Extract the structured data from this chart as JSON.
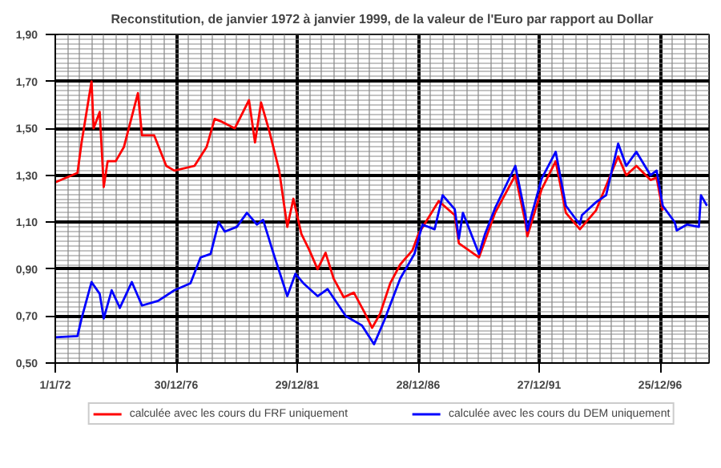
{
  "chart_data": {
    "type": "line",
    "title": "Reconstitution, de janvier 1972 à janvier 1999, de la valeur de l'Euro par rapport au Dollar",
    "xlim": [
      "1972-01-01",
      "1998-12-31"
    ],
    "xticks": [
      {
        "value": "1972-01-01",
        "label": "1/1/72"
      },
      {
        "value": "1976-12-30",
        "label": "30/12/76"
      },
      {
        "value": "1981-12-29",
        "label": "29/12/81"
      },
      {
        "value": "1986-12-28",
        "label": "28/12/86"
      },
      {
        "value": "1991-12-27",
        "label": "27/12/91"
      },
      {
        "value": "1996-12-25",
        "label": "25/12/96"
      }
    ],
    "ylim": [
      0.5,
      1.9
    ],
    "yticks": [
      {
        "value": 0.5,
        "label": "0,50"
      },
      {
        "value": 0.7,
        "label": "0,70"
      },
      {
        "value": 0.9,
        "label": "0,90"
      },
      {
        "value": 1.1,
        "label": "1,10"
      },
      {
        "value": 1.3,
        "label": "1,30"
      },
      {
        "value": 1.5,
        "label": "1,50"
      },
      {
        "value": 1.7,
        "label": "1,70"
      },
      {
        "value": 1.9,
        "label": "1,90"
      }
    ],
    "grid": true,
    "legend": "bottom",
    "line_style": "solid",
    "series": [
      {
        "name": "calculée avec les cours du FRF uniquement",
        "color": "#ff0000",
        "x": [
          "1972-01",
          "1972-12",
          "1973-02",
          "1973-07",
          "1973-08",
          "1973-11",
          "1974-01",
          "1974-03",
          "1974-07",
          "1974-11",
          "1975-06",
          "1975-08",
          "1976-02",
          "1976-08",
          "1976-12",
          "1977-10",
          "1978-04",
          "1978-08",
          "1978-11",
          "1979-06",
          "1980-01",
          "1980-04",
          "1980-07",
          "1980-11",
          "1981-04",
          "1981-07",
          "1981-08",
          "1981-11",
          "1982-03",
          "1982-07",
          "1982-11",
          "1983-03",
          "1983-07",
          "1983-12",
          "1984-05",
          "1984-10",
          "1985-02",
          "1985-06",
          "1985-11",
          "1986-04",
          "1986-10",
          "1987-01",
          "1987-11",
          "1988-07",
          "1988-09",
          "1989-07",
          "1990-03",
          "1991-01",
          "1991-06",
          "1991-07",
          "1992-02",
          "1992-09",
          "1993-02",
          "1993-09",
          "1994-05",
          "1995-04",
          "1995-08",
          "1996-01",
          "1996-08",
          "1996-11",
          "1997-02"
        ],
        "values": [
          1.27,
          1.31,
          1.44,
          1.7,
          1.5,
          1.57,
          1.25,
          1.36,
          1.36,
          1.42,
          1.65,
          1.47,
          1.47,
          1.34,
          1.32,
          1.34,
          1.42,
          1.54,
          1.53,
          1.5,
          1.62,
          1.44,
          1.61,
          1.49,
          1.32,
          1.14,
          1.08,
          1.2,
          1.05,
          0.98,
          0.9,
          0.97,
          0.86,
          0.78,
          0.8,
          0.72,
          0.65,
          0.71,
          0.84,
          0.92,
          0.98,
          1.05,
          1.19,
          1.13,
          1.01,
          0.95,
          1.14,
          1.3,
          1.1,
          1.04,
          1.24,
          1.36,
          1.14,
          1.07,
          1.15,
          1.38,
          1.3,
          1.34,
          1.28,
          1.29,
          1.15
        ]
      },
      {
        "name": "calculée avec les cours du DEM uniquement",
        "color": "#0000ff",
        "x": [
          "1972-01",
          "1972-12",
          "1973-02",
          "1973-07",
          "1973-11",
          "1974-01",
          "1974-05",
          "1974-09",
          "1975-03",
          "1975-08",
          "1976-04",
          "1976-12",
          "1977-08",
          "1978-01",
          "1978-06",
          "1978-10",
          "1979-01",
          "1979-07",
          "1979-12",
          "1980-05",
          "1980-08",
          "1981-01",
          "1981-08",
          "1981-12",
          "1982-04",
          "1982-11",
          "1983-04",
          "1984-01",
          "1984-09",
          "1985-03",
          "1985-08",
          "1986-04",
          "1986-11",
          "1987-03",
          "1987-09",
          "1988-01",
          "1988-07",
          "1988-09",
          "1988-11",
          "1989-07",
          "1989-10",
          "1990-03",
          "1991-01",
          "1991-06",
          "1991-07",
          "1992-02",
          "1992-09",
          "1993-02",
          "1993-09",
          "1993-10",
          "1994-05",
          "1994-10",
          "1995-04",
          "1995-08",
          "1996-01",
          "1996-08",
          "1996-11",
          "1997-02",
          "1997-08",
          "1997-09",
          "1998-02",
          "1998-08",
          "1998-09",
          "1998-12"
        ],
        "values": [
          0.61,
          0.615,
          0.69,
          0.845,
          0.795,
          0.69,
          0.81,
          0.735,
          0.845,
          0.745,
          0.765,
          0.81,
          0.84,
          0.95,
          0.965,
          1.1,
          1.06,
          1.08,
          1.14,
          1.09,
          1.11,
          0.97,
          0.785,
          0.88,
          0.84,
          0.785,
          0.815,
          0.7,
          0.66,
          0.58,
          0.68,
          0.86,
          0.965,
          1.09,
          1.07,
          1.215,
          1.155,
          1.03,
          1.14,
          0.965,
          1.05,
          1.16,
          1.34,
          1.13,
          1.065,
          1.285,
          1.4,
          1.17,
          1.09,
          1.13,
          1.185,
          1.215,
          1.435,
          1.34,
          1.4,
          1.3,
          1.32,
          1.17,
          1.1,
          1.065,
          1.09,
          1.08,
          1.215,
          1.17
        ]
      }
    ]
  }
}
